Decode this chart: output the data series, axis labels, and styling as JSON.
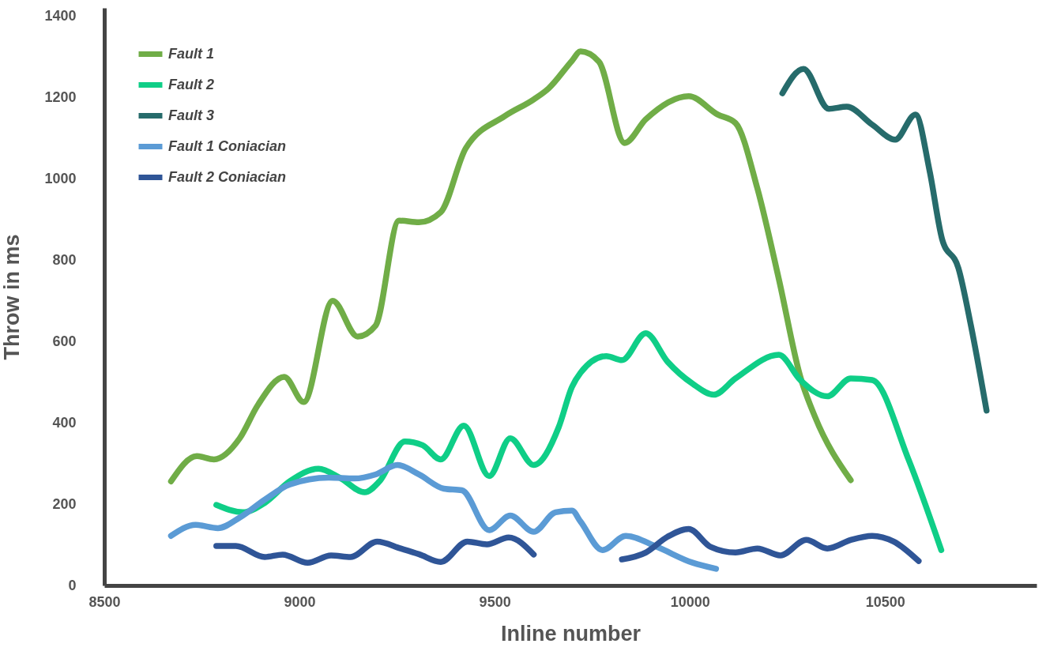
{
  "chart_data": {
    "type": "line",
    "xlabel": "Inline number",
    "ylabel": "Throw in ms",
    "xlim": [
      8500,
      10888
    ],
    "ylim": [
      0,
      1420
    ],
    "xticks": [
      8500,
      9000,
      9500,
      10000,
      10500
    ],
    "yticks": [
      0,
      200,
      400,
      600,
      800,
      1000,
      1200,
      1400
    ],
    "legend": "top left",
    "line_style": "solid",
    "series": [
      {
        "name": "Fault 1",
        "color": "#70ad47",
        "x": [
          8671,
          8737,
          8781,
          8847,
          8893,
          8961,
          9011,
          9085,
          9149,
          9195,
          9255,
          9306,
          9362,
          9426,
          9526,
          9600,
          9638,
          9698,
          9720,
          9767,
          9833,
          9887,
          9997,
          10071,
          10117,
          10173,
          10228,
          10283,
          10320,
          10412
        ],
        "values": [
          256,
          318,
          310,
          362,
          443,
          513,
          451,
          700,
          612,
          639,
          897,
          893,
          918,
          1075,
          1154,
          1195,
          1222,
          1290,
          1313,
          1288,
          1088,
          1146,
          1203,
          1158,
          1137,
          976,
          753,
          513,
          416,
          259
        ]
      },
      {
        "name": "Fault 2",
        "color": "#0fce87",
        "x": [
          8787,
          8855,
          8911,
          8975,
          9049,
          9103,
          9167,
          9205,
          9270,
          9315,
          9362,
          9421,
          9486,
          9540,
          9600,
          9664,
          9698,
          9720,
          9786,
          9826,
          9887,
          9943,
          10007,
          10061,
          10117,
          10228,
          10283,
          10352,
          10412,
          10467,
          10560,
          10644
        ],
        "values": [
          198,
          180,
          203,
          256,
          287,
          265,
          229,
          256,
          354,
          345,
          310,
          393,
          269,
          362,
          296,
          389,
          488,
          523,
          564,
          554,
          620,
          550,
          496,
          469,
          509,
          567,
          505,
          465,
          509,
          505,
          310,
          87
        ]
      },
      {
        "name": "Fault 3",
        "color": "#266b6b",
        "x": [
          10237,
          10291,
          10356,
          10402,
          10467,
          10526,
          10578,
          10614,
          10646,
          10688,
          10720,
          10760
        ],
        "values": [
          1210,
          1270,
          1172,
          1177,
          1133,
          1096,
          1158,
          1020,
          852,
          780,
          639,
          430
        ]
      },
      {
        "name": "Fault 1 Coniacian",
        "color": "#5b9bd5",
        "x": [
          8671,
          8734,
          8791,
          8847,
          8911,
          8975,
          9075,
          9141,
          9195,
          9251,
          9306,
          9370,
          9416,
          9486,
          9540,
          9600,
          9656,
          9698,
          9720,
          9776,
          9836,
          9915,
          10007,
          10067
        ],
        "values": [
          122,
          149,
          141,
          167,
          211,
          248,
          265,
          263,
          273,
          296,
          273,
          238,
          234,
          136,
          172,
          132,
          180,
          184,
          157,
          87,
          122,
          95,
          56,
          41
        ]
      },
      {
        "name": "Fault 2 Coniacian",
        "color": "#2f5597",
        "x": [
          8787,
          8837,
          8911,
          8957,
          9021,
          9081,
          9131,
          9199,
          9259,
          9306,
          9362,
          9430,
          9480,
          9536,
          9600,
          9700,
          9826,
          9887,
          9943,
          9997,
          10053,
          10117,
          10173,
          10232,
          10298,
          10352,
          10412,
          10467,
          10522,
          10586
        ],
        "values": [
          97,
          97,
          70,
          76,
          56,
          74,
          70,
          108,
          91,
          77,
          58,
          108,
          101,
          118,
          76,
          null,
          64,
          81,
          120,
          139,
          95,
          81,
          91,
          74,
          112,
          91,
          112,
          122,
          108,
          60
        ]
      }
    ]
  }
}
